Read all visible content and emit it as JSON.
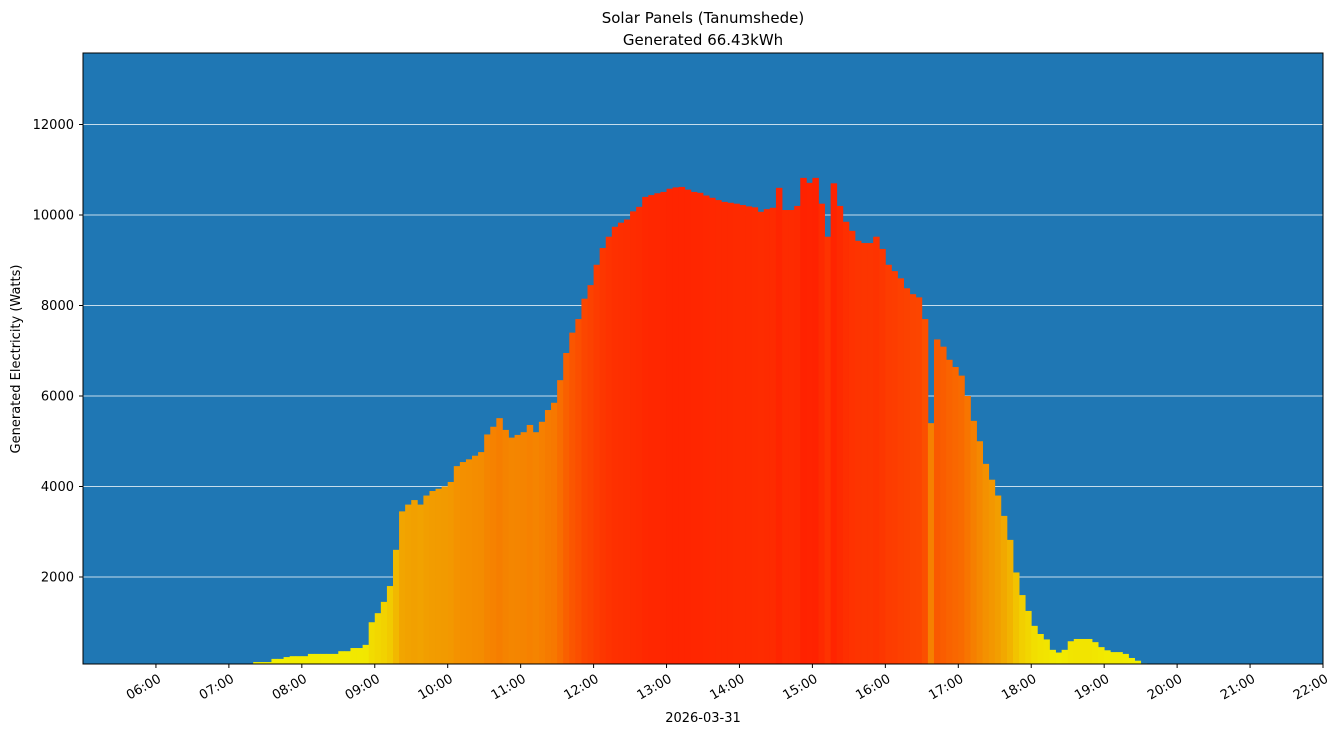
{
  "chart_data": {
    "type": "bar",
    "title": "Solar Panels (Tanumshede)",
    "subtitle": "Generated 66.43kWh",
    "xlabel": "2026-03-31",
    "ylabel": "Generated Electricity (Watts)",
    "xlim": [
      "05:00",
      "22:00"
    ],
    "ylim": [
      77,
      13580
    ],
    "grid": "horizontal",
    "background_color": "#1f77b4",
    "grid_color": "#ffffff",
    "colormap": "yellow (low) to red (high)",
    "bar_interval_minutes": 5,
    "xticks": [
      "06:00",
      "07:00",
      "08:00",
      "09:00",
      "10:00",
      "11:00",
      "12:00",
      "13:00",
      "14:00",
      "15:00",
      "16:00",
      "17:00",
      "18:00",
      "19:00",
      "20:00",
      "21:00",
      "22:00"
    ],
    "yticks": [
      2000,
      4000,
      6000,
      8000,
      10000,
      12000
    ],
    "x": [
      "06:00",
      "06:05",
      "06:10",
      "06:15",
      "06:20",
      "06:25",
      "06:30",
      "06:35",
      "06:40",
      "06:45",
      "06:50",
      "06:55",
      "07:00",
      "07:05",
      "07:10",
      "07:15",
      "07:20",
      "07:25",
      "07:30",
      "07:35",
      "07:40",
      "07:45",
      "07:50",
      "07:55",
      "08:00",
      "08:05",
      "08:10",
      "08:15",
      "08:20",
      "08:25",
      "08:30",
      "08:35",
      "08:40",
      "08:45",
      "08:50",
      "08:55",
      "09:00",
      "09:05",
      "09:10",
      "09:15",
      "09:20",
      "09:25",
      "09:30",
      "09:35",
      "09:40",
      "09:45",
      "09:50",
      "09:55",
      "10:00",
      "10:05",
      "10:10",
      "10:15",
      "10:20",
      "10:25",
      "10:30",
      "10:35",
      "10:40",
      "10:45",
      "10:50",
      "10:55",
      "11:00",
      "11:05",
      "11:10",
      "11:15",
      "11:20",
      "11:25",
      "11:30",
      "11:35",
      "11:40",
      "11:45",
      "11:50",
      "11:55",
      "12:00",
      "12:05",
      "12:10",
      "12:15",
      "12:20",
      "12:25",
      "12:30",
      "12:35",
      "12:40",
      "12:45",
      "12:50",
      "12:55",
      "13:00",
      "13:05",
      "13:10",
      "13:15",
      "13:20",
      "13:25",
      "13:30",
      "13:35",
      "13:40",
      "13:45",
      "13:50",
      "13:55",
      "14:00",
      "14:05",
      "14:10",
      "14:15",
      "14:20",
      "14:25",
      "14:30",
      "14:35",
      "14:40",
      "14:45",
      "14:50",
      "14:55",
      "15:00",
      "15:05",
      "15:10",
      "15:15",
      "15:20",
      "15:25",
      "15:30",
      "15:35",
      "15:40",
      "15:45",
      "15:50",
      "15:55",
      "16:00",
      "16:05",
      "16:10",
      "16:15",
      "16:20",
      "16:25",
      "16:30",
      "16:35",
      "16:40",
      "16:45",
      "16:50",
      "16:55",
      "17:00",
      "17:05",
      "17:10",
      "17:15",
      "17:20",
      "17:25",
      "17:30",
      "17:35",
      "17:40",
      "17:45",
      "17:50",
      "17:55",
      "18:00",
      "18:05",
      "18:10",
      "18:15",
      "18:20",
      "18:25",
      "18:30",
      "18:35",
      "18:40",
      "18:45",
      "18:50",
      "18:55",
      "19:00",
      "19:05",
      "19:10",
      "19:15",
      "19:20",
      "19:25",
      "19:30",
      "19:35"
    ],
    "values": [
      0,
      0,
      0,
      0,
      0,
      0,
      80,
      80,
      80,
      0,
      0,
      0,
      80,
      80,
      80,
      80,
      120,
      120,
      120,
      190,
      190,
      230,
      250,
      250,
      250,
      300,
      300,
      300,
      300,
      300,
      360,
      360,
      430,
      430,
      500,
      1000,
      1200,
      1450,
      1800,
      2600,
      3450,
      3600,
      3700,
      3600,
      3800,
      3900,
      3950,
      4000,
      4100,
      4450,
      4540,
      4600,
      4680,
      4760,
      5150,
      5320,
      5510,
      5250,
      5080,
      5140,
      5200,
      5360,
      5200,
      5430,
      5690,
      5850,
      6350,
      6950,
      7400,
      7700,
      8150,
      8450,
      8900,
      9270,
      9520,
      9740,
      9830,
      9900,
      10080,
      10180,
      10400,
      10440,
      10480,
      10510,
      10580,
      10610,
      10620,
      10560,
      10510,
      10490,
      10430,
      10380,
      10330,
      10290,
      10270,
      10250,
      10220,
      10190,
      10170,
      10070,
      10130,
      10160,
      10600,
      10110,
      10110,
      10200,
      10820,
      10710,
      10820,
      10250,
      9520,
      10700,
      10200,
      9850,
      9650,
      9430,
      9380,
      9380,
      9520,
      9250,
      8900,
      8760,
      8600,
      8380,
      8250,
      8180,
      7700,
      5400,
      7250,
      7090,
      6800,
      6640,
      6450,
      6000,
      5450,
      5000,
      4500,
      4150,
      3800,
      3350,
      2820,
      2100,
      1600,
      1250,
      920,
      740,
      620,
      390,
      330,
      390,
      580,
      630,
      630,
      630,
      560,
      450,
      380,
      340,
      340,
      300,
      210,
      150,
      90,
      0
    ]
  }
}
